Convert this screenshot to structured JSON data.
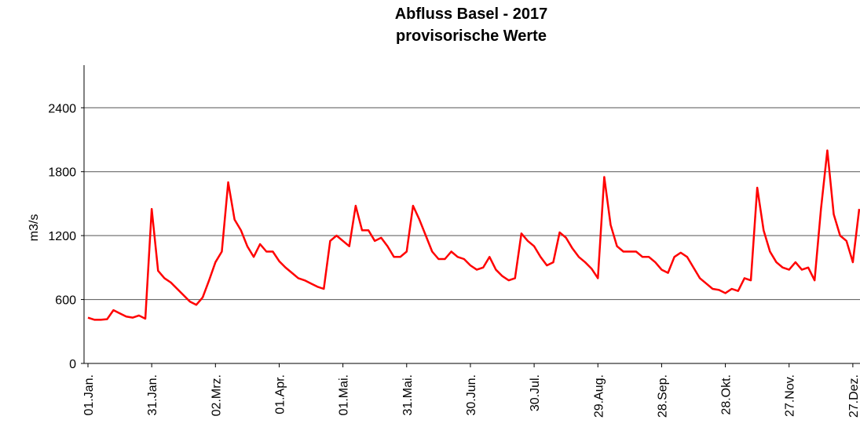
{
  "chart_data": {
    "type": "line",
    "title": "Abfluss Basel - 2017",
    "subtitle": "provisorische Werte",
    "y_label": "m3/s",
    "categories": [
      "01.Jan.",
      null,
      null,
      null,
      null,
      null,
      null,
      null,
      null,
      null,
      "31.Jan.",
      null,
      null,
      null,
      null,
      null,
      null,
      null,
      null,
      null,
      "02.Mrz.",
      null,
      null,
      null,
      null,
      null,
      null,
      null,
      null,
      null,
      "01.Apr.",
      null,
      null,
      null,
      null,
      null,
      null,
      null,
      null,
      null,
      "01.Mai.",
      null,
      null,
      null,
      null,
      null,
      null,
      null,
      null,
      null,
      "31.Mai.",
      null,
      null,
      null,
      null,
      null,
      null,
      null,
      null,
      null,
      "30.Jun.",
      null,
      null,
      null,
      null,
      null,
      null,
      null,
      null,
      null,
      "30.Jul.",
      null,
      null,
      null,
      null,
      null,
      null,
      null,
      null,
      null,
      "29.Aug.",
      null,
      null,
      null,
      null,
      null,
      null,
      null,
      null,
      null,
      "28.Sep.",
      null,
      null,
      null,
      null,
      null,
      null,
      null,
      null,
      null,
      "28.Okt.",
      null,
      null,
      null,
      null,
      null,
      null,
      null,
      null,
      null,
      "27.Nov.",
      null,
      null,
      null,
      null,
      null,
      null,
      null,
      null,
      null,
      "27.Dez.",
      null
    ],
    "values": [
      430,
      410,
      410,
      415,
      500,
      470,
      440,
      430,
      450,
      420,
      1450,
      870,
      800,
      760,
      700,
      640,
      580,
      550,
      620,
      780,
      950,
      1050,
      1700,
      1350,
      1250,
      1100,
      1000,
      1120,
      1050,
      1050,
      960,
      900,
      850,
      800,
      780,
      750,
      720,
      700,
      1150,
      1200,
      1150,
      1100,
      1480,
      1250,
      1250,
      1150,
      1180,
      1100,
      1000,
      1000,
      1050,
      1480,
      1350,
      1200,
      1050,
      980,
      980,
      1050,
      1000,
      980,
      920,
      880,
      900,
      1000,
      880,
      820,
      780,
      800,
      1220,
      1150,
      1100,
      1000,
      920,
      950,
      1230,
      1180,
      1080,
      1000,
      950,
      890,
      800,
      1750,
      1300,
      1100,
      1050,
      1050,
      1050,
      1000,
      1000,
      950,
      880,
      850,
      1000,
      1040,
      1000,
      900,
      800,
      750,
      700,
      690,
      660,
      700,
      680,
      800,
      780,
      1650,
      1250,
      1050,
      950,
      900,
      880,
      950,
      880,
      900,
      780,
      1450,
      2000,
      1400,
      1200,
      1150,
      950,
      1450
    ],
    "color": "#ff0000",
    "ylim": [
      0,
      2800
    ],
    "yticks": [
      0,
      600,
      1200,
      1800,
      2400
    ],
    "grid": true
  }
}
